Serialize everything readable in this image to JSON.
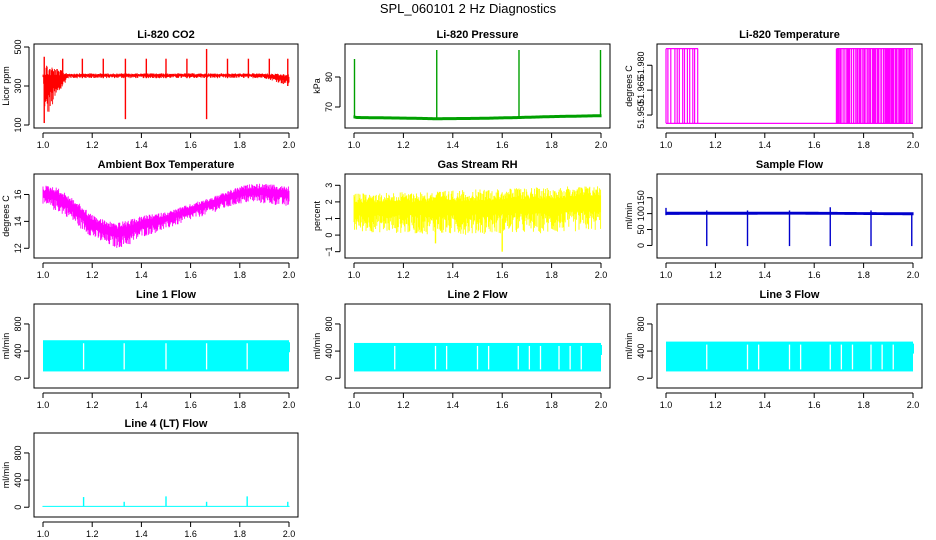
{
  "figure": {
    "title": "SPL_060101  2 Hz Diagnostics"
  },
  "chart_data": [
    {
      "type": "line",
      "title": "Li-820 CO2",
      "ylabel": "Licor ppm",
      "xlabel": "",
      "color": "#ff0000",
      "style": "noisy",
      "xlim": [
        1.0,
        2.0
      ],
      "ylim": [
        100,
        500
      ],
      "xticks": [
        1.0,
        1.2,
        1.4,
        1.6,
        1.8,
        2.0
      ],
      "xtick_labels": [
        "1.0",
        "1.2",
        "1.4",
        "1.6",
        "1.8",
        "2.0"
      ],
      "yticks": [
        100,
        300,
        500
      ],
      "ytick_labels": [
        "100",
        "300",
        "500"
      ],
      "series": [
        {
          "name": "CO2",
          "x": [
            1.0,
            1.01,
            1.1,
            1.2,
            1.3,
            1.4,
            1.5,
            1.6,
            1.7,
            1.8,
            1.9,
            2.0
          ],
          "low": [
            340,
            120,
            340,
            340,
            340,
            340,
            340,
            340,
            340,
            340,
            340,
            300
          ],
          "high": [
            360,
            420,
            365,
            365,
            365,
            365,
            365,
            365,
            365,
            365,
            365,
            360
          ]
        }
      ],
      "spikes": [
        {
          "x": 1.005,
          "low": 110,
          "high": 450
        },
        {
          "x": 1.08,
          "low": 340,
          "high": 440
        },
        {
          "x": 1.16,
          "low": 340,
          "high": 440
        },
        {
          "x": 1.245,
          "low": 340,
          "high": 440
        },
        {
          "x": 1.335,
          "low": 130,
          "high": 440
        },
        {
          "x": 1.42,
          "low": 340,
          "high": 440
        },
        {
          "x": 1.5,
          "low": 340,
          "high": 440
        },
        {
          "x": 1.585,
          "low": 340,
          "high": 440
        },
        {
          "x": 1.665,
          "low": 130,
          "high": 490
        },
        {
          "x": 1.75,
          "low": 340,
          "high": 440
        },
        {
          "x": 1.835,
          "low": 340,
          "high": 440
        },
        {
          "x": 1.92,
          "low": 340,
          "high": 440
        },
        {
          "x": 1.995,
          "low": 300,
          "high": 440
        }
      ]
    },
    {
      "type": "line",
      "title": "Li-820 Pressure",
      "ylabel": "kPa",
      "xlabel": "",
      "color": "#00a000",
      "style": "thin",
      "xlim": [
        1.0,
        2.0
      ],
      "ylim": [
        64,
        90
      ],
      "xticks": [
        1.0,
        1.2,
        1.4,
        1.6,
        1.8,
        2.0
      ],
      "xtick_labels": [
        "1.0",
        "1.2",
        "1.4",
        "1.6",
        "1.8",
        "2.0"
      ],
      "yticks": [
        70,
        80
      ],
      "ytick_labels": [
        "70",
        "80"
      ],
      "series": [
        {
          "name": "Pressure",
          "x": [
            1.0,
            1.01,
            1.2,
            1.33,
            1.5,
            1.67,
            1.8,
            2.0
          ],
          "low": [
            66.2,
            66.0,
            65.8,
            65.6,
            65.7,
            66.0,
            66.3,
            66.6
          ],
          "high": [
            67.2,
            67.0,
            66.8,
            66.6,
            66.7,
            67.0,
            67.3,
            67.6
          ]
        }
      ],
      "spikes": [
        {
          "x": 1.002,
          "low": 67,
          "high": 86
        },
        {
          "x": 1.335,
          "low": 66,
          "high": 89
        },
        {
          "x": 1.668,
          "low": 66,
          "high": 89
        },
        {
          "x": 1.998,
          "low": 67,
          "high": 89
        }
      ]
    },
    {
      "type": "line",
      "title": "Li-820 Temperature",
      "ylabel": "degrees C",
      "xlabel": "",
      "color": "#ff00ff",
      "style": "bars",
      "xlim": [
        1.0,
        2.0
      ],
      "ylim": [
        51.944,
        51.991
      ],
      "xticks": [
        1.0,
        1.2,
        1.4,
        1.6,
        1.8,
        2.0
      ],
      "xtick_labels": [
        "1.0",
        "1.2",
        "1.4",
        "1.6",
        "1.8",
        "2.0"
      ],
      "yticks": [
        51.95,
        51.965,
        51.98
      ],
      "ytick_labels": [
        "51.950",
        "51.965",
        "51.980"
      ],
      "levels": [
        51.945,
        51.99
      ],
      "series": [
        {
          "name": "Temperature",
          "x": [
            1.0,
            1.13,
            1.13,
            1.69,
            1.69,
            2.0
          ],
          "low": [
            51.945,
            51.945,
            51.945,
            51.945,
            51.945,
            51.945
          ],
          "high": [
            51.99,
            51.99,
            51.945,
            51.945,
            51.99,
            51.99
          ]
        }
      ],
      "spikes": []
    },
    {
      "type": "line",
      "title": "Ambient Box Temperature",
      "ylabel": "degrees C",
      "xlabel": "",
      "color": "#ff00ff",
      "style": "noisy",
      "xlim": [
        1.0,
        2.0
      ],
      "ylim": [
        11.5,
        17.3
      ],
      "xticks": [
        1.0,
        1.2,
        1.4,
        1.6,
        1.8,
        2.0
      ],
      "xtick_labels": [
        "1.0",
        "1.2",
        "1.4",
        "1.6",
        "1.8",
        "2.0"
      ],
      "yticks": [
        12,
        14,
        16
      ],
      "ytick_labels": [
        "12",
        "14",
        "16"
      ],
      "series": [
        {
          "name": "Box Temp",
          "x": [
            1.0,
            1.05,
            1.1,
            1.15,
            1.2,
            1.25,
            1.3,
            1.35,
            1.4,
            1.5,
            1.6,
            1.7,
            1.8,
            1.85,
            1.9,
            1.95,
            2.0
          ],
          "low": [
            15.0,
            14.8,
            14.3,
            13.5,
            12.8,
            12.3,
            12.0,
            12.2,
            12.8,
            13.4,
            14.1,
            14.7,
            15.3,
            15.4,
            15.3,
            15.2,
            15.0
          ],
          "high": [
            16.7,
            16.6,
            16.0,
            15.3,
            14.5,
            14.1,
            13.9,
            14.1,
            14.4,
            14.7,
            15.3,
            15.9,
            16.6,
            16.8,
            16.8,
            16.7,
            16.6
          ]
        }
      ],
      "spikes": []
    },
    {
      "type": "line",
      "title": "Gas Stream RH",
      "ylabel": "percent",
      "xlabel": "",
      "color": "#ffff00",
      "style": "noisy",
      "xlim": [
        1.0,
        2.0
      ],
      "ylim": [
        -1.2,
        3.5
      ],
      "xticks": [
        1.0,
        1.2,
        1.4,
        1.6,
        1.8,
        2.0
      ],
      "xtick_labels": [
        "1.0",
        "1.2",
        "1.4",
        "1.6",
        "1.8",
        "2.0"
      ],
      "yticks": [
        -1,
        0,
        1,
        2,
        3
      ],
      "ytick_labels": [
        "−1",
        "0",
        "1",
        "2",
        "3"
      ],
      "series": [
        {
          "name": "RH",
          "x": [
            1.0,
            1.2,
            1.4,
            1.6,
            1.8,
            2.0
          ],
          "low": [
            0.2,
            0.1,
            0.0,
            0.1,
            0.1,
            0.3
          ],
          "high": [
            2.5,
            2.6,
            2.7,
            2.8,
            2.9,
            3.0
          ]
        }
      ],
      "spikes": [
        {
          "x": 1.6,
          "low": -1.0,
          "high": 1.0
        },
        {
          "x": 1.33,
          "low": -0.5,
          "high": 1.0
        }
      ]
    },
    {
      "type": "line",
      "title": "Sample Flow",
      "ylabel": "ml/min",
      "xlabel": "",
      "color": "#0000cc",
      "style": "thin",
      "xlim": [
        1.0,
        2.0
      ],
      "ylim": [
        -30,
        215
      ],
      "xticks": [
        1.0,
        1.2,
        1.4,
        1.6,
        1.8,
        2.0
      ],
      "xtick_labels": [
        "1.0",
        "1.2",
        "1.4",
        "1.6",
        "1.8",
        "2.0"
      ],
      "yticks": [
        0,
        50,
        100,
        150
      ],
      "ytick_labels": [
        "0",
        "50",
        "100",
        "150"
      ],
      "series": [
        {
          "name": "Sample Flow",
          "x": [
            1.0,
            1.5,
            2.0
          ],
          "low": [
            96,
            97,
            95
          ],
          "high": [
            106,
            106,
            104
          ]
        }
      ],
      "spikes": [
        {
          "x": 1.0,
          "low": 95,
          "high": 118
        },
        {
          "x": 1.165,
          "low": -2,
          "high": 110
        },
        {
          "x": 1.33,
          "low": -2,
          "high": 110
        },
        {
          "x": 1.5,
          "low": -2,
          "high": 110
        },
        {
          "x": 1.665,
          "low": -2,
          "high": 120
        },
        {
          "x": 1.83,
          "low": -2,
          "high": 110
        },
        {
          "x": 1.995,
          "low": -2,
          "high": 102
        }
      ]
    },
    {
      "type": "line",
      "title": "Line 1 Flow",
      "ylabel": "ml/min",
      "xlabel": "",
      "color": "#00ffff",
      "style": "block",
      "xlim": [
        1.0,
        2.0
      ],
      "ylim": [
        -100,
        1050
      ],
      "xticks": [
        1.0,
        1.2,
        1.4,
        1.6,
        1.8,
        2.0
      ],
      "xtick_labels": [
        "1.0",
        "1.2",
        "1.4",
        "1.6",
        "1.8",
        "2.0"
      ],
      "yticks": [
        0,
        400,
        800
      ],
      "ytick_labels": [
        "0",
        "400",
        "800"
      ],
      "series": [
        {
          "name": "Line 1",
          "x": [
            1.0,
            2.0
          ],
          "low": [
            100,
            100
          ],
          "high": [
            560,
            560
          ]
        }
      ],
      "gaps": [
        1.165,
        1.33,
        1.5,
        1.665,
        1.83
      ],
      "spikes": []
    },
    {
      "type": "line",
      "title": "Line 2 Flow",
      "ylabel": "ml/min",
      "xlabel": "",
      "color": "#00ffff",
      "style": "block",
      "xlim": [
        1.0,
        2.0
      ],
      "ylim": [
        -100,
        1050
      ],
      "xticks": [
        1.0,
        1.2,
        1.4,
        1.6,
        1.8,
        2.0
      ],
      "xtick_labels": [
        "1.0",
        "1.2",
        "1.4",
        "1.6",
        "1.8",
        "2.0"
      ],
      "yticks": [
        0,
        400,
        800
      ],
      "ytick_labels": [
        "0",
        "400",
        "800"
      ],
      "series": [
        {
          "name": "Line 2",
          "x": [
            1.0,
            2.0
          ],
          "low": [
            100,
            100
          ],
          "high": [
            520,
            520
          ]
        }
      ],
      "gaps": [
        1.165,
        1.33,
        1.375,
        1.5,
        1.545,
        1.665,
        1.71,
        1.755,
        1.83,
        1.875,
        1.92
      ],
      "spikes": []
    },
    {
      "type": "line",
      "title": "Line 3 Flow",
      "ylabel": "ml/min",
      "xlabel": "",
      "color": "#00ffff",
      "style": "block",
      "xlim": [
        1.0,
        2.0
      ],
      "ylim": [
        -100,
        1050
      ],
      "xticks": [
        1.0,
        1.2,
        1.4,
        1.6,
        1.8,
        2.0
      ],
      "xtick_labels": [
        "1.0",
        "1.2",
        "1.4",
        "1.6",
        "1.8",
        "2.0"
      ],
      "yticks": [
        0,
        400,
        800
      ],
      "ytick_labels": [
        "0",
        "400",
        "800"
      ],
      "series": [
        {
          "name": "Line 3",
          "x": [
            1.0,
            2.0
          ],
          "low": [
            100,
            100
          ],
          "high": [
            540,
            540
          ]
        }
      ],
      "gaps": [
        1.165,
        1.33,
        1.375,
        1.5,
        1.545,
        1.665,
        1.71,
        1.755,
        1.83,
        1.875,
        1.92
      ],
      "spikes": []
    },
    {
      "type": "line",
      "title": "Line 4 (LT) Flow",
      "ylabel": "ml/min",
      "xlabel": "",
      "color": "#00ffff",
      "style": "thin",
      "xlim": [
        1.0,
        2.0
      ],
      "ylim": [
        -100,
        1050
      ],
      "xticks": [
        1.0,
        1.2,
        1.4,
        1.6,
        1.8,
        2.0
      ],
      "xtick_labels": [
        "1.0",
        "1.2",
        "1.4",
        "1.6",
        "1.8",
        "2.0"
      ],
      "yticks": [
        0,
        400,
        800
      ],
      "ytick_labels": [
        "0",
        "400",
        "800"
      ],
      "series": [
        {
          "name": "Line 4",
          "x": [
            1.0,
            2.0
          ],
          "low": [
            5,
            5
          ],
          "high": [
            20,
            20
          ]
        }
      ],
      "spikes": [
        {
          "x": 1.165,
          "low": 10,
          "high": 150
        },
        {
          "x": 1.33,
          "low": 10,
          "high": 80
        },
        {
          "x": 1.5,
          "low": 10,
          "high": 160
        },
        {
          "x": 1.665,
          "low": 10,
          "high": 80
        },
        {
          "x": 1.83,
          "low": 10,
          "high": 160
        },
        {
          "x": 1.995,
          "low": 10,
          "high": 80
        }
      ]
    }
  ]
}
